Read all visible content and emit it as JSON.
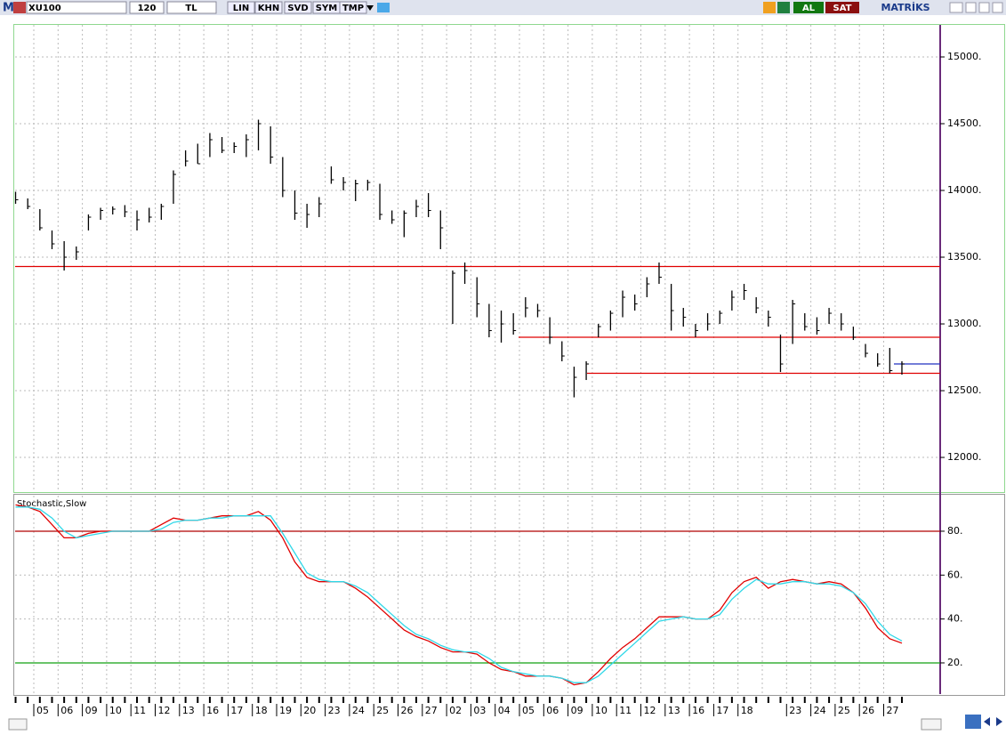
{
  "toolbar": {
    "logo": "M",
    "symbol": "XU100",
    "period": "120",
    "currency": "TL",
    "buttons": [
      "LIN",
      "KHN",
      "SVD",
      "SYM",
      "TMP"
    ],
    "buy": "AL",
    "sell": "SAT",
    "brand": "MATRİKS"
  },
  "chart_data": [
    {
      "type": "ohlc",
      "categories": [
        null,
        "05",
        "06",
        "09",
        "10",
        "11",
        "12",
        "13",
        "16",
        "17",
        "18",
        "19",
        "20",
        "23",
        "24",
        "25",
        "26",
        "27",
        "02",
        "03",
        "04",
        "05",
        "06",
        "09",
        "10",
        "11",
        "12",
        "13",
        "16",
        "17",
        "18",
        null,
        "23",
        "24",
        "25",
        "26",
        "27"
      ],
      "high": [
        13990,
        13940,
        13860,
        13700,
        13620,
        13580,
        13820,
        13870,
        13880,
        13890,
        13850,
        13870,
        13900,
        14150,
        14300,
        14350,
        14430,
        14400,
        14360,
        14420,
        14530,
        14480,
        14250,
        14000,
        13900,
        13950,
        14180,
        14100,
        14080,
        14080,
        14050,
        13850,
        13850,
        13930,
        13980,
        13850,
        13400,
        13460,
        13350,
        13150,
        13100,
        13080,
        13200,
        13150,
        13050,
        12870,
        12680,
        12720,
        13000,
        13100,
        13250,
        13220,
        13350,
        13460,
        13300,
        13120,
        13000,
        13080,
        13100,
        13250,
        13300,
        13200,
        13100,
        12920,
        13180,
        13080,
        13050,
        13120,
        13080,
        12980,
        12850,
        12780,
        12820,
        12720
      ],
      "low": [
        13900,
        13860,
        13700,
        13560,
        13400,
        13480,
        13700,
        13780,
        13820,
        13800,
        13700,
        13760,
        13780,
        13900,
        14180,
        14200,
        14250,
        14280,
        14280,
        14250,
        14300,
        14200,
        13950,
        13780,
        13720,
        13800,
        14050,
        14000,
        13920,
        14000,
        13780,
        13750,
        13650,
        13800,
        13800,
        13560,
        13000,
        13300,
        13050,
        12900,
        12860,
        12920,
        13050,
        13050,
        12850,
        12720,
        12450,
        12580,
        12900,
        12950,
        13050,
        13100,
        13200,
        13300,
        12950,
        12980,
        12900,
        12950,
        13000,
        13100,
        13180,
        13080,
        12980,
        12640,
        12850,
        12950,
        12920,
        13000,
        12950,
        12880,
        12750,
        12680,
        12630,
        12620
      ],
      "close": [
        13930,
        13880,
        13720,
        13600,
        13500,
        13540,
        13800,
        13850,
        13860,
        13840,
        13780,
        13800,
        13880,
        14120,
        14220,
        14200,
        14380,
        14300,
        14330,
        14380,
        14500,
        14250,
        14000,
        13830,
        13820,
        13900,
        14080,
        14060,
        14050,
        14060,
        13820,
        13780,
        13830,
        13880,
        13850,
        13720,
        13380,
        13400,
        13150,
        12950,
        13000,
        12950,
        13120,
        13100,
        12900,
        12760,
        12600,
        12700,
        12980,
        13080,
        13200,
        13150,
        13300,
        13350,
        13100,
        13050,
        12950,
        13000,
        13080,
        13200,
        13250,
        13120,
        13050,
        12700,
        13150,
        12980,
        12950,
        13080,
        13000,
        12900,
        12780,
        12700,
        12650,
        12700
      ],
      "color": "#000000",
      "hlines": [
        {
          "value": 13430,
          "color": "#e00000"
        },
        {
          "value": 12900,
          "color": "#e00000"
        },
        {
          "value": 12630,
          "color": "#e00000"
        },
        {
          "value": 12700,
          "color": "#2030c0"
        }
      ],
      "ylim": [
        11747,
        15240
      ],
      "yticks": [
        {
          "value": 12000,
          "label": "12000."
        },
        {
          "value": 12500,
          "label": "12500."
        },
        {
          "value": 13000,
          "label": "13000."
        },
        {
          "value": 13500,
          "label": "13500."
        },
        {
          "value": 14000,
          "label": "14000."
        },
        {
          "value": 14500,
          "label": "14500."
        },
        {
          "value": 15000,
          "label": "15000."
        }
      ],
      "grid": true
    },
    {
      "type": "line",
      "title": "Stochastic,Slow",
      "series": [
        {
          "color": "#e00000",
          "values": [
            92,
            91,
            89,
            83,
            77,
            77,
            79,
            80,
            80,
            80,
            80,
            80,
            83,
            86,
            85,
            85,
            86,
            87,
            87,
            87,
            89,
            85,
            77,
            66,
            59,
            57,
            57,
            57,
            54,
            50,
            45,
            40,
            35,
            32,
            30,
            27,
            25,
            25,
            24,
            20,
            17,
            16,
            14,
            14,
            14,
            13,
            10,
            11,
            16,
            22,
            27,
            31,
            36,
            41,
            41,
            41,
            40,
            40,
            44,
            52,
            57,
            59,
            54,
            57,
            58,
            57,
            56,
            57,
            56,
            52,
            45,
            36,
            31,
            29
          ]
        },
        {
          "color": "#30d8e8",
          "values": [
            91,
            91,
            90,
            86,
            80,
            77,
            78,
            79,
            80,
            80,
            80,
            80,
            81,
            84,
            85,
            85,
            86,
            86,
            87,
            87,
            87,
            87,
            79,
            70,
            61,
            58,
            57,
            57,
            55,
            52,
            47,
            42,
            37,
            33,
            31,
            28,
            26,
            25,
            25,
            22,
            18,
            16,
            15,
            14,
            14,
            13,
            11,
            11,
            14,
            19,
            24,
            29,
            34,
            39,
            40,
            41,
            40,
            40,
            42,
            49,
            54,
            58,
            56,
            56,
            57,
            57,
            56,
            56,
            55,
            52,
            47,
            39,
            33,
            30
          ]
        }
      ],
      "hlines": [
        {
          "value": 80,
          "color": "#b00000"
        },
        {
          "value": 20,
          "color": "#10a010"
        }
      ],
      "ylim": [
        5.8,
        95.8
      ],
      "yticks": [
        {
          "value": 20,
          "label": "20."
        },
        {
          "value": 40,
          "label": "40."
        },
        {
          "value": 60,
          "label": "60."
        },
        {
          "value": 80,
          "label": "80."
        }
      ],
      "grid": true
    }
  ]
}
